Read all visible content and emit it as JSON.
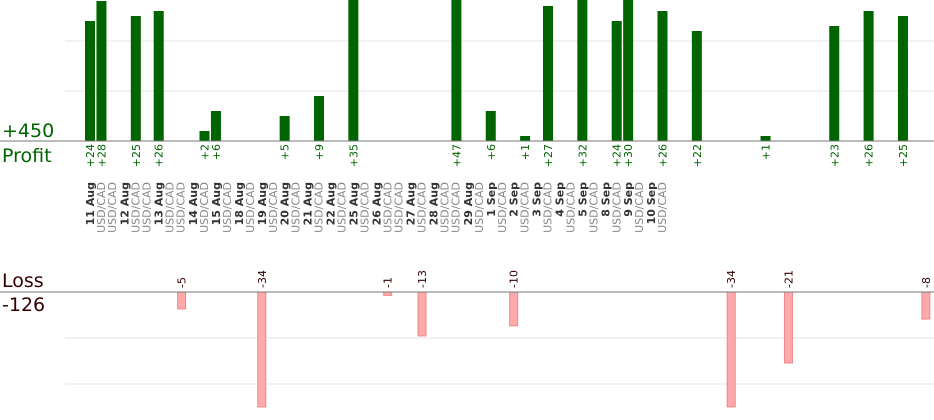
{
  "profit_total": "+450",
  "profit_label": "Profit",
  "loss_label": "Loss",
  "loss_total": "-126",
  "colors": {
    "profit_bar": "#006400",
    "profit_text": "#006400",
    "loss_bar": "#ffaaaa",
    "loss_bar_border": "#ee8888",
    "loss_text": "#330000",
    "grid": "#e6e6e6",
    "baseline": "#777777",
    "date_text": "#333333",
    "pair_text": "#888888"
  },
  "chart_data": {
    "type": "bar",
    "grid": true,
    "dates": [
      {
        "label": "11 Aug",
        "pair": "USD/CAD",
        "pairs": 2
      },
      {
        "label": "12 Aug",
        "pair": "USD/CAD",
        "pairs": 2
      },
      {
        "label": "13 Aug",
        "pair": "USD/CAD",
        "pairs": 2
      },
      {
        "label": "14 Aug",
        "pair": "USD/CAD",
        "pairs": 1
      },
      {
        "label": "15 Aug",
        "pair": "USD/CAD",
        "pairs": 1
      },
      {
        "label": "18 Aug",
        "pair": "USD/CAD",
        "pairs": 1
      },
      {
        "label": "19 Aug",
        "pair": "USD/CAD",
        "pairs": 1
      },
      {
        "label": "20 Aug",
        "pair": "USD/CAD",
        "pairs": 1
      },
      {
        "label": "21 Aug",
        "pair": "USD/CAD",
        "pairs": 1
      },
      {
        "label": "22 Aug",
        "pair": "USD/CAD",
        "pairs": 1
      },
      {
        "label": "25 Aug",
        "pair": "USD/CAD",
        "pairs": 1
      },
      {
        "label": "26 Aug",
        "pair": "USD/CAD",
        "pairs": 2
      },
      {
        "label": "27 Aug",
        "pair": "USD/CAD",
        "pairs": 1
      },
      {
        "label": "28 Aug",
        "pair": "USD/CAD",
        "pairs": 2
      },
      {
        "label": "29 Aug",
        "pair": "USD/CAD",
        "pairs": 1
      },
      {
        "label": "1 Sep",
        "pair": "USD/CAD",
        "pairs": 1
      },
      {
        "label": "2 Sep",
        "pair": "USD/CAD",
        "pairs": 1
      },
      {
        "label": "3 Sep",
        "pair": "USD/CAD",
        "pairs": 1
      },
      {
        "label": "4 Sep",
        "pair": "USD/CAD",
        "pairs": 1
      },
      {
        "label": "5 Sep",
        "pair": "USD/CAD",
        "pairs": 1
      },
      {
        "label": "8 Sep",
        "pair": "USD/CAD",
        "pairs": 1
      },
      {
        "label": "9 Sep",
        "pair": "USD/CAD",
        "pairs": 1
      },
      {
        "label": "10 Sep",
        "pair": "USD/CAD",
        "pairs": 1
      }
    ],
    "profit_trades": [
      {
        "slot": 0,
        "value": 24,
        "label": "+24"
      },
      {
        "slot": 1,
        "value": 28,
        "label": "+28"
      },
      {
        "slot": 4,
        "value": 25,
        "label": "+25"
      },
      {
        "slot": 6,
        "value": 26,
        "label": "+26"
      },
      {
        "slot": 10,
        "value": 2,
        "label": "+2"
      },
      {
        "slot": 11,
        "value": 6,
        "label": "+6"
      },
      {
        "slot": 17,
        "value": 5,
        "label": "+5"
      },
      {
        "slot": 20,
        "value": 9,
        "label": "+9"
      },
      {
        "slot": 23,
        "value": 35,
        "label": "+35"
      },
      {
        "slot": 32,
        "value": 47,
        "label": "+47"
      },
      {
        "slot": 35,
        "value": 6,
        "label": "+6"
      },
      {
        "slot": 38,
        "value": 1,
        "label": "+1"
      },
      {
        "slot": 40,
        "value": 27,
        "label": "+27"
      },
      {
        "slot": 43,
        "value": 32,
        "label": "+32"
      },
      {
        "slot": 46,
        "value": 24,
        "label": "+24"
      },
      {
        "slot": 47,
        "value": 30,
        "label": "+30"
      },
      {
        "slot": 50,
        "value": 26,
        "label": "+26"
      },
      {
        "slot": 53,
        "value": 22,
        "label": "+22"
      },
      {
        "slot": 59,
        "value": 1,
        "label": "+1"
      },
      {
        "slot": 65,
        "value": 23,
        "label": "+23"
      },
      {
        "slot": 68,
        "value": 26,
        "label": "+26"
      },
      {
        "slot": 71,
        "value": 25,
        "label": "+25"
      }
    ],
    "loss_trades": [
      {
        "slot": 8,
        "value": -5,
        "label": "-5"
      },
      {
        "slot": 15,
        "value": -34,
        "label": "-34"
      },
      {
        "slot": 26,
        "value": -1,
        "label": "-1"
      },
      {
        "slot": 29,
        "value": -13,
        "label": "-13"
      },
      {
        "slot": 37,
        "value": -10,
        "label": "-10"
      },
      {
        "slot": 56,
        "value": -34,
        "label": "-34"
      },
      {
        "slot": 61,
        "value": -21,
        "label": "-21"
      },
      {
        "slot": 73,
        "value": -8,
        "label": "-8"
      }
    ]
  }
}
